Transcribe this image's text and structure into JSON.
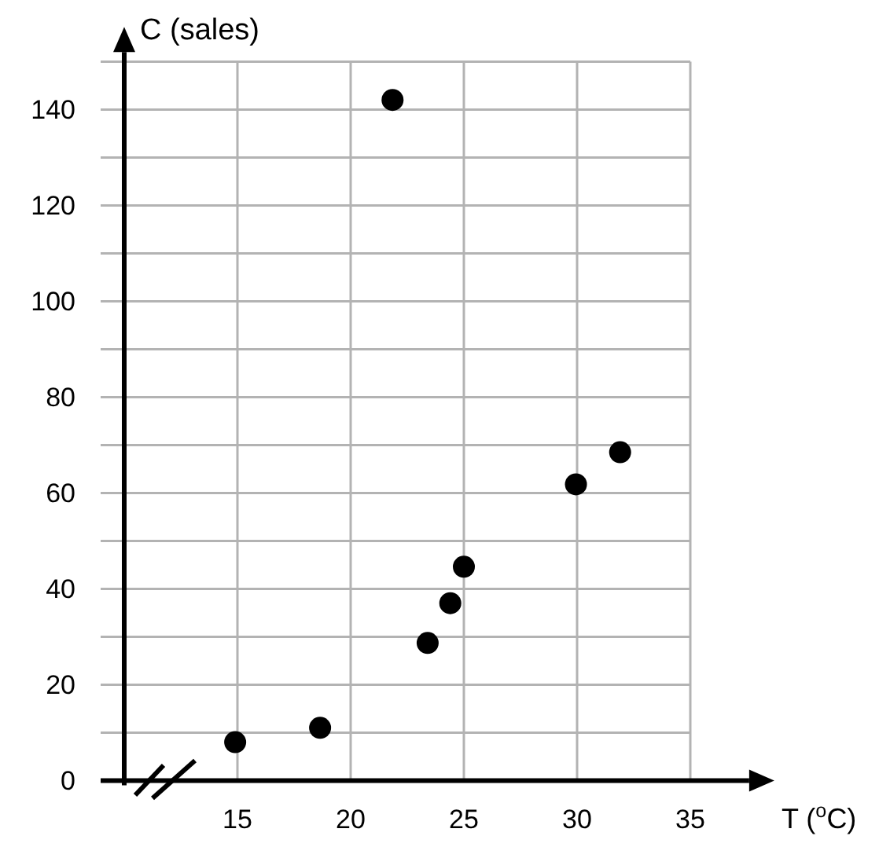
{
  "chart_data": {
    "type": "scatter",
    "xlabel": "T ($^{o}$C)",
    "ylabel": "C (sales)",
    "x": [
      14.9,
      18.65,
      21.85,
      23.4,
      24.4,
      25.0,
      29.95,
      31.9
    ],
    "values": [
      8,
      11,
      142,
      28.7,
      37,
      44.6,
      61.8,
      68.5
    ],
    "color": "#000000",
    "marker": "circle",
    "xlim": [
      10,
      37.6
    ],
    "ylim": [
      0,
      152
    ],
    "xticks": [
      15,
      20,
      25,
      30,
      35
    ],
    "yticks": [
      0,
      {
        "value": 10,
        "label": null
      },
      20,
      {
        "value": 30,
        "label": null
      },
      40,
      {
        "value": 50,
        "label": null
      },
      60,
      {
        "value": 70,
        "label": null
      },
      80,
      {
        "value": 90,
        "label": null
      },
      100,
      {
        "value": 110,
        "label": null
      },
      120,
      {
        "value": 130,
        "label": null
      },
      140,
      {
        "value": 150,
        "label": null
      }
    ],
    "grid": true
  }
}
